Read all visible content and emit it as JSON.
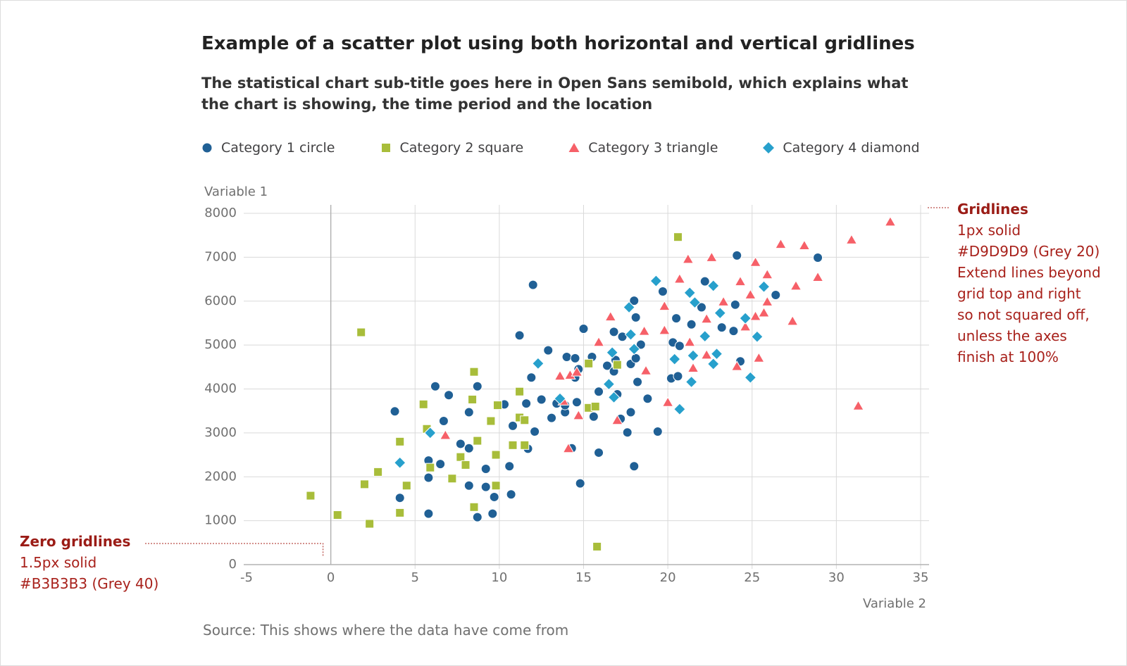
{
  "chart_data": {
    "type": "scatter",
    "title": "Example of a scatter plot using both horizontal and vertical gridlines",
    "subtitle": "The statistical chart sub-title goes here in Open Sans semibold, which explains what the chart is showing, the time period and the location",
    "y_label": "Variable 1",
    "x_label": "Variable 2",
    "source": "Source: This shows where the data have come from",
    "xlim": [
      -5,
      35
    ],
    "xticks": [
      -5,
      0,
      5,
      10,
      15,
      20,
      25,
      30,
      35
    ],
    "ylim": [
      0,
      8000
    ],
    "yticks": [
      0,
      1000,
      2000,
      3000,
      4000,
      5000,
      6000,
      7000,
      8000
    ],
    "grid": true,
    "grid_color": "#d9d9d9",
    "zero_line_color": "#b3b3b3",
    "series": [
      {
        "name": "Category 1 circle",
        "color": "#206095",
        "marker": "circle",
        "x": [
          3.8,
          4.1,
          5.8,
          5.8,
          5.8,
          6.2,
          6.5,
          6.7,
          7.0,
          7.7,
          8.2,
          8.2,
          8.2,
          8.7,
          8.7,
          9.2,
          9.2,
          9.6,
          9.7,
          10.3,
          10.6,
          10.7,
          10.8,
          11.2,
          11.6,
          11.7,
          11.9,
          12.0,
          12.1,
          12.5,
          12.9,
          13.1,
          13.4,
          13.9,
          14.0,
          13.9,
          14.3,
          14.5,
          14.5,
          14.6,
          14.7,
          14.8,
          15.0,
          15.5,
          15.6,
          15.9,
          15.9,
          16.4,
          16.8,
          16.8,
          16.9,
          17.0,
          17.2,
          17.3,
          17.6,
          17.8,
          17.8,
          18.0,
          18.0,
          18.1,
          18.1,
          18.2,
          18.4,
          18.8,
          19.4,
          19.7,
          20.2,
          20.3,
          20.5,
          20.6,
          20.7,
          21.4,
          22.0,
          22.2,
          23.2,
          23.9,
          24.0,
          24.1,
          24.3,
          26.4,
          28.9
        ],
        "values": [
          3490,
          1520,
          2370,
          1980,
          1160,
          4060,
          2290,
          3270,
          3860,
          2750,
          3470,
          2650,
          1800,
          4060,
          1080,
          2180,
          1770,
          1160,
          1540,
          3650,
          2240,
          1600,
          3160,
          5220,
          3670,
          2640,
          4260,
          6370,
          3030,
          3760,
          4880,
          3340,
          3670,
          3470,
          4730,
          3630,
          2650,
          4700,
          4260,
          3700,
          4450,
          1850,
          5370,
          4730,
          3370,
          2550,
          3940,
          4530,
          5300,
          4400,
          4660,
          3880,
          3320,
          5190,
          3010,
          4570,
          3470,
          6010,
          2240,
          5630,
          4700,
          4160,
          5010,
          3780,
          3030,
          6220,
          4240,
          5060,
          5610,
          4290,
          4980,
          5470,
          5860,
          6450,
          5400,
          5320,
          5920,
          7040,
          4630,
          6140,
          6990
        ]
      },
      {
        "name": "Category 2 square",
        "color": "#a8bd3a",
        "marker": "square",
        "x": [
          -1.2,
          0.4,
          1.8,
          2.0,
          2.3,
          2.8,
          4.1,
          4.1,
          4.5,
          5.5,
          5.7,
          5.9,
          7.2,
          7.7,
          8.0,
          8.4,
          8.5,
          8.5,
          8.7,
          9.5,
          9.8,
          9.8,
          9.9,
          10.8,
          11.2,
          11.2,
          11.5,
          11.5,
          15.3,
          15.3,
          15.7,
          15.8,
          17.0,
          20.6
        ],
        "values": [
          1570,
          1130,
          5290,
          1830,
          930,
          2110,
          2800,
          1180,
          1800,
          3650,
          3090,
          2210,
          1960,
          2450,
          2270,
          3760,
          1310,
          4390,
          2820,
          3270,
          2500,
          1800,
          3630,
          2720,
          3940,
          3350,
          3290,
          2720,
          4580,
          3570,
          3600,
          410,
          4550,
          7460
        ]
      },
      {
        "name": "Category 3 triangle",
        "color": "#f66068",
        "marker": "triangle",
        "x": [
          6.8,
          13.6,
          13.8,
          14.1,
          14.2,
          14.6,
          14.7,
          15.9,
          16.6,
          17.0,
          18.6,
          18.7,
          19.8,
          19.8,
          20.0,
          20.7,
          21.2,
          21.3,
          21.5,
          22.3,
          22.3,
          22.6,
          23.3,
          24.1,
          24.3,
          24.6,
          24.9,
          25.2,
          25.2,
          25.4,
          25.7,
          25.9,
          25.9,
          26.7,
          27.4,
          27.6,
          28.1,
          28.9,
          30.9,
          31.3,
          33.2
        ],
        "values": [
          2950,
          4300,
          3730,
          2650,
          4320,
          4390,
          3400,
          5070,
          5650,
          3290,
          5320,
          4420,
          5890,
          5340,
          3700,
          6510,
          6960,
          5070,
          4480,
          5600,
          4780,
          7000,
          5990,
          4520,
          6450,
          5420,
          6150,
          5660,
          6890,
          4710,
          5740,
          5990,
          6610,
          7300,
          5550,
          6350,
          7270,
          6550,
          7400,
          3620,
          7810
        ]
      },
      {
        "name": "Category 4 diamond",
        "color": "#27a0cc",
        "marker": "diamond",
        "x": [
          4.1,
          5.9,
          12.3,
          13.6,
          16.5,
          16.7,
          16.8,
          17.7,
          17.8,
          18.0,
          19.3,
          20.4,
          20.7,
          21.3,
          21.4,
          21.5,
          21.6,
          22.2,
          22.7,
          22.7,
          22.9,
          23.1,
          24.6,
          24.9,
          25.3,
          25.7
        ],
        "values": [
          2320,
          3000,
          4580,
          3780,
          4110,
          4830,
          3810,
          5860,
          5240,
          4910,
          6460,
          4680,
          3540,
          6190,
          4160,
          4760,
          5970,
          5200,
          6350,
          4570,
          4800,
          5730,
          5610,
          4260,
          5190,
          6330
        ]
      }
    ],
    "annotations": {
      "gridlines": {
        "heading": "Gridlines",
        "lines": [
          "1px solid",
          "#D9D9D9 (Grey 20)",
          "Extend lines beyond",
          "grid top and right",
          "so not squared off,",
          "unless the axes",
          "finish at 100%"
        ]
      },
      "zero_gridlines": {
        "heading": "Zero gridlines",
        "lines": [
          "1.5px solid",
          "#B3B3B3 (Grey 40)"
        ]
      }
    }
  }
}
